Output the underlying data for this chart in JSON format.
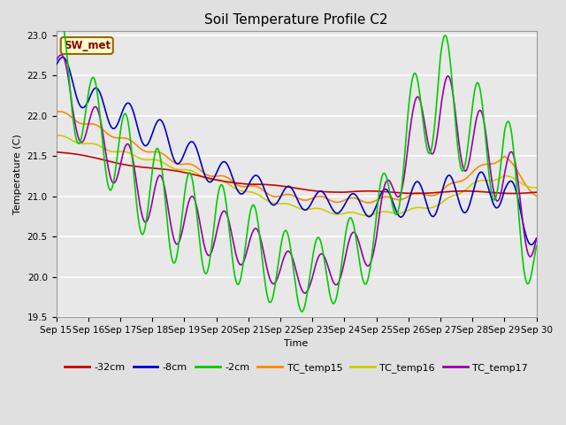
{
  "title": "Soil Temperature Profile C2",
  "xlabel": "Time",
  "ylabel": "Temperature (C)",
  "ylim": [
    19.5,
    23.05
  ],
  "xlim": [
    0,
    15
  ],
  "annotation": "SW_met",
  "tick_labels": [
    "Sep 15",
    "Sep 16",
    "Sep 17",
    "Sep 18",
    "Sep 19",
    "Sep 20",
    "Sep 21",
    "Sep 22",
    "Sep 23",
    "Sep 24",
    "Sep 25",
    "Sep 26",
    "Sep 27",
    "Sep 28",
    "Sep 29",
    "Sep 30"
  ],
  "series": {
    "-32cm": {
      "color": "#cc0000",
      "linewidth": 1.2
    },
    "-8cm": {
      "color": "#0000cc",
      "linewidth": 1.2
    },
    "-2cm": {
      "color": "#00cc00",
      "linewidth": 1.2
    },
    "TC_temp15": {
      "color": "#ff8800",
      "linewidth": 1.2
    },
    "TC_temp16": {
      "color": "#cccc00",
      "linewidth": 1.2
    },
    "TC_temp17": {
      "color": "#9900aa",
      "linewidth": 1.2
    }
  },
  "fig_bg_color": "#e0e0e0",
  "plot_bg_color": "#e8e8e8",
  "grid_color": "#ffffff",
  "title_fontsize": 11,
  "axis_fontsize": 8,
  "tick_fontsize": 7.5
}
